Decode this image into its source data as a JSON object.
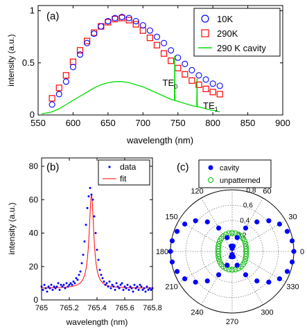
{
  "chart_data": [
    {
      "panel": "(a)",
      "type": "scatter",
      "xlabel": "wavelength (nm)",
      "ylabel": "intensity (a.u.)",
      "xlim": [
        550,
        900
      ],
      "ylim": [
        0,
        1.05
      ],
      "x_ticks": [
        550,
        600,
        650,
        700,
        750,
        800,
        850,
        900
      ],
      "y_ticks": [
        0,
        0.5,
        1
      ],
      "y_tick_labels": [
        "0",
        "0.5",
        "1"
      ],
      "legend_position": "top-right",
      "colors": {
        "10K": "#0000ff",
        "290K": "#ff0000",
        "cavity": "#00dd00"
      },
      "series": [
        {
          "name": "10K",
          "marker": "open-circle",
          "x": [
            570,
            580,
            590,
            600,
            610,
            620,
            630,
            640,
            650,
            660,
            670,
            680,
            690,
            700,
            710,
            720,
            730,
            740,
            750,
            760,
            770,
            780,
            790,
            800,
            810
          ],
          "y": [
            0.1,
            0.2,
            0.32,
            0.46,
            0.58,
            0.69,
            0.78,
            0.85,
            0.9,
            0.93,
            0.94,
            0.93,
            0.9,
            0.86,
            0.81,
            0.75,
            0.69,
            0.62,
            0.55,
            0.49,
            0.43,
            0.38,
            0.34,
            0.3,
            0.28
          ]
        },
        {
          "name": "290K",
          "marker": "open-square",
          "x": [
            570,
            580,
            590,
            600,
            610,
            620,
            630,
            640,
            650,
            660,
            670,
            680,
            690,
            700,
            710,
            720,
            730,
            740,
            750,
            760,
            770,
            780,
            790,
            800,
            810
          ],
          "y": [
            0.16,
            0.26,
            0.38,
            0.51,
            0.62,
            0.71,
            0.79,
            0.85,
            0.89,
            0.92,
            0.93,
            0.91,
            0.87,
            0.81,
            0.74,
            0.67,
            0.59,
            0.52,
            0.45,
            0.39,
            0.33,
            0.29,
            0.25,
            0.22,
            0.2
          ]
        },
        {
          "name": "290 K cavity",
          "marker": "line",
          "x": [
            555,
            570,
            580,
            590,
            600,
            610,
            620,
            630,
            640,
            650,
            660,
            670,
            680,
            690,
            700,
            710,
            720,
            730,
            740,
            745,
            745.4,
            745.8,
            750,
            760,
            770,
            777,
            777.4,
            777.8,
            785,
            795,
            805,
            810
          ],
          "y": [
            0.01,
            0.03,
            0.06,
            0.1,
            0.14,
            0.18,
            0.22,
            0.26,
            0.29,
            0.31,
            0.32,
            0.32,
            0.31,
            0.29,
            0.27,
            0.24,
            0.21,
            0.18,
            0.15,
            0.14,
            0.57,
            0.14,
            0.13,
            0.11,
            0.09,
            0.08,
            0.35,
            0.08,
            0.07,
            0.05,
            0.04,
            0.03
          ]
        }
      ],
      "annotations": [
        {
          "base": "TE",
          "sub": "0",
          "x": 728,
          "y": 0.28
        },
        {
          "base": "TE",
          "sub": "1",
          "x": 786,
          "y": 0.06
        }
      ]
    },
    {
      "panel": "(b)",
      "type": "scatter",
      "xlabel": "wavelength (nm)",
      "ylabel": "intensity (a.u.)",
      "xlim": [
        765,
        765.8
      ],
      "ylim": [
        0,
        85
      ],
      "x_ticks": [
        765,
        765.2,
        765.4,
        765.6,
        765.8
      ],
      "x_tick_labels": [
        "765",
        "765.2",
        "765.4",
        "765.6",
        "765.8"
      ],
      "y_ticks": [
        0,
        20,
        40,
        60,
        80
      ],
      "legend_position": "top-right",
      "colors": {
        "data": "#0000ff",
        "fit": "#ff0000"
      },
      "fit": {
        "model": "lorentzian",
        "center": 765.36,
        "peak": 63,
        "fwhm": 0.04,
        "baseline": 7
      },
      "series": [
        {
          "name": "data",
          "marker": "dot",
          "x": [
            765.0,
            765.01,
            765.02,
            765.03,
            765.04,
            765.05,
            765.06,
            765.07,
            765.08,
            765.09,
            765.1,
            765.11,
            765.12,
            765.13,
            765.14,
            765.15,
            765.16,
            765.17,
            765.18,
            765.19,
            765.2,
            765.21,
            765.22,
            765.23,
            765.24,
            765.25,
            765.26,
            765.27,
            765.28,
            765.29,
            765.3,
            765.31,
            765.32,
            765.33,
            765.34,
            765.35,
            765.36,
            765.37,
            765.38,
            765.39,
            765.4,
            765.41,
            765.42,
            765.43,
            765.44,
            765.45,
            765.46,
            765.47,
            765.48,
            765.49,
            765.5,
            765.51,
            765.52,
            765.53,
            765.54,
            765.55,
            765.56,
            765.57,
            765.58,
            765.59,
            765.6,
            765.61,
            765.62,
            765.63,
            765.64,
            765.65,
            765.66,
            765.67,
            765.68,
            765.69,
            765.7,
            765.71,
            765.72,
            765.73,
            765.74,
            765.75,
            765.76,
            765.77,
            765.78,
            765.79,
            765.8
          ],
          "y": [
            8,
            6,
            9,
            7,
            5,
            8,
            7,
            9,
            6,
            8,
            7,
            8,
            10,
            6,
            9,
            8,
            9,
            7,
            10,
            8,
            9,
            10,
            9,
            11,
            10,
            13,
            12,
            15,
            17,
            22,
            27,
            35,
            45,
            55,
            62,
            67,
            63,
            60,
            50,
            40,
            30,
            24,
            18,
            15,
            13,
            11,
            9,
            10,
            8,
            11,
            7,
            9,
            8,
            6,
            10,
            8,
            7,
            9,
            10,
            6,
            8,
            7,
            9,
            6,
            8,
            7,
            5,
            9,
            7,
            8,
            6,
            9,
            8,
            6,
            7,
            5,
            8,
            6,
            7,
            6,
            7
          ]
        },
        {
          "name": "fit",
          "marker": "line"
        }
      ]
    },
    {
      "panel": "(c)",
      "type": "scatter",
      "coordinate_system": "polar",
      "r_max": 0.8,
      "r_ticks": [
        0.2,
        0.4,
        0.6,
        0.8
      ],
      "r_tick_labels": [
        "0.2",
        "0.4",
        "0.6",
        "0.8"
      ],
      "angle_ticks": [
        0,
        30,
        60,
        90,
        120,
        150,
        180,
        210,
        240,
        270,
        300,
        330
      ],
      "angle_tick_labels": [
        "0",
        "30",
        "60",
        "90",
        "120",
        "150",
        "180",
        "210",
        "240",
        "270",
        "300",
        "330"
      ],
      "legend_position": "top",
      "colors": {
        "cavity": "#0000ff",
        "unpatterned": "#00bb00"
      },
      "series": [
        {
          "name": "cavity",
          "marker": "filled-circle",
          "theta": [
            0,
            10,
            20,
            30,
            40,
            50,
            60,
            70,
            80,
            90,
            100,
            110,
            120,
            130,
            140,
            150,
            160,
            170,
            180,
            190,
            200,
            210,
            220,
            230,
            240,
            250,
            260,
            270,
            280,
            290,
            300,
            310,
            320,
            330,
            340,
            350
          ],
          "r": [
            0.8,
            0.79,
            0.76,
            0.71,
            0.62,
            0.5,
            0.35,
            0.19,
            0.07,
            0.04,
            0.07,
            0.19,
            0.35,
            0.5,
            0.62,
            0.71,
            0.76,
            0.79,
            0.8,
            0.79,
            0.76,
            0.71,
            0.62,
            0.5,
            0.35,
            0.19,
            0.07,
            0.04,
            0.07,
            0.19,
            0.35,
            0.5,
            0.62,
            0.71,
            0.76,
            0.79
          ]
        },
        {
          "name": "unpatterned",
          "marker": "open-circle",
          "theta": [
            0,
            10,
            20,
            30,
            40,
            50,
            60,
            70,
            80,
            90,
            100,
            110,
            120,
            130,
            140,
            150,
            160,
            170,
            180,
            190,
            200,
            210,
            220,
            230,
            240,
            250,
            260,
            270,
            280,
            290,
            300,
            310,
            320,
            330,
            340,
            350
          ],
          "r": [
            0.18,
            0.185,
            0.19,
            0.2,
            0.21,
            0.22,
            0.23,
            0.235,
            0.24,
            0.24,
            0.24,
            0.235,
            0.23,
            0.22,
            0.21,
            0.2,
            0.19,
            0.185,
            0.18,
            0.185,
            0.19,
            0.2,
            0.21,
            0.22,
            0.23,
            0.235,
            0.24,
            0.24,
            0.24,
            0.235,
            0.23,
            0.22,
            0.21,
            0.2,
            0.19,
            0.185
          ]
        }
      ]
    }
  ]
}
